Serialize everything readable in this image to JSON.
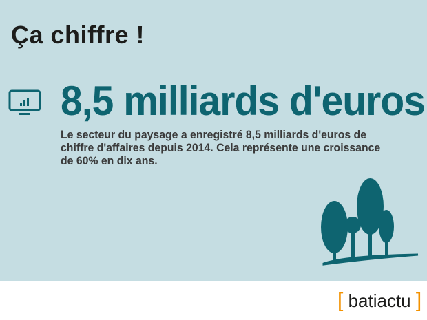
{
  "title": "Ça chiffre !",
  "headline": "8,5 milliards d'euros",
  "description": "Le secteur du paysage a enregistré 8,5 milliards d'euros de chiffre d'affaires depuis 2014. Cela représente une croissance de 60% en dix ans.",
  "logo": {
    "text": "batiactu",
    "bracket_left": "[",
    "bracket_right": "]"
  },
  "colors": {
    "background": "#c5dde2",
    "accent": "#0e6470",
    "logo_bracket": "#f39200"
  },
  "icons": [
    "monitor-chart-icon",
    "trees-illustration"
  ]
}
